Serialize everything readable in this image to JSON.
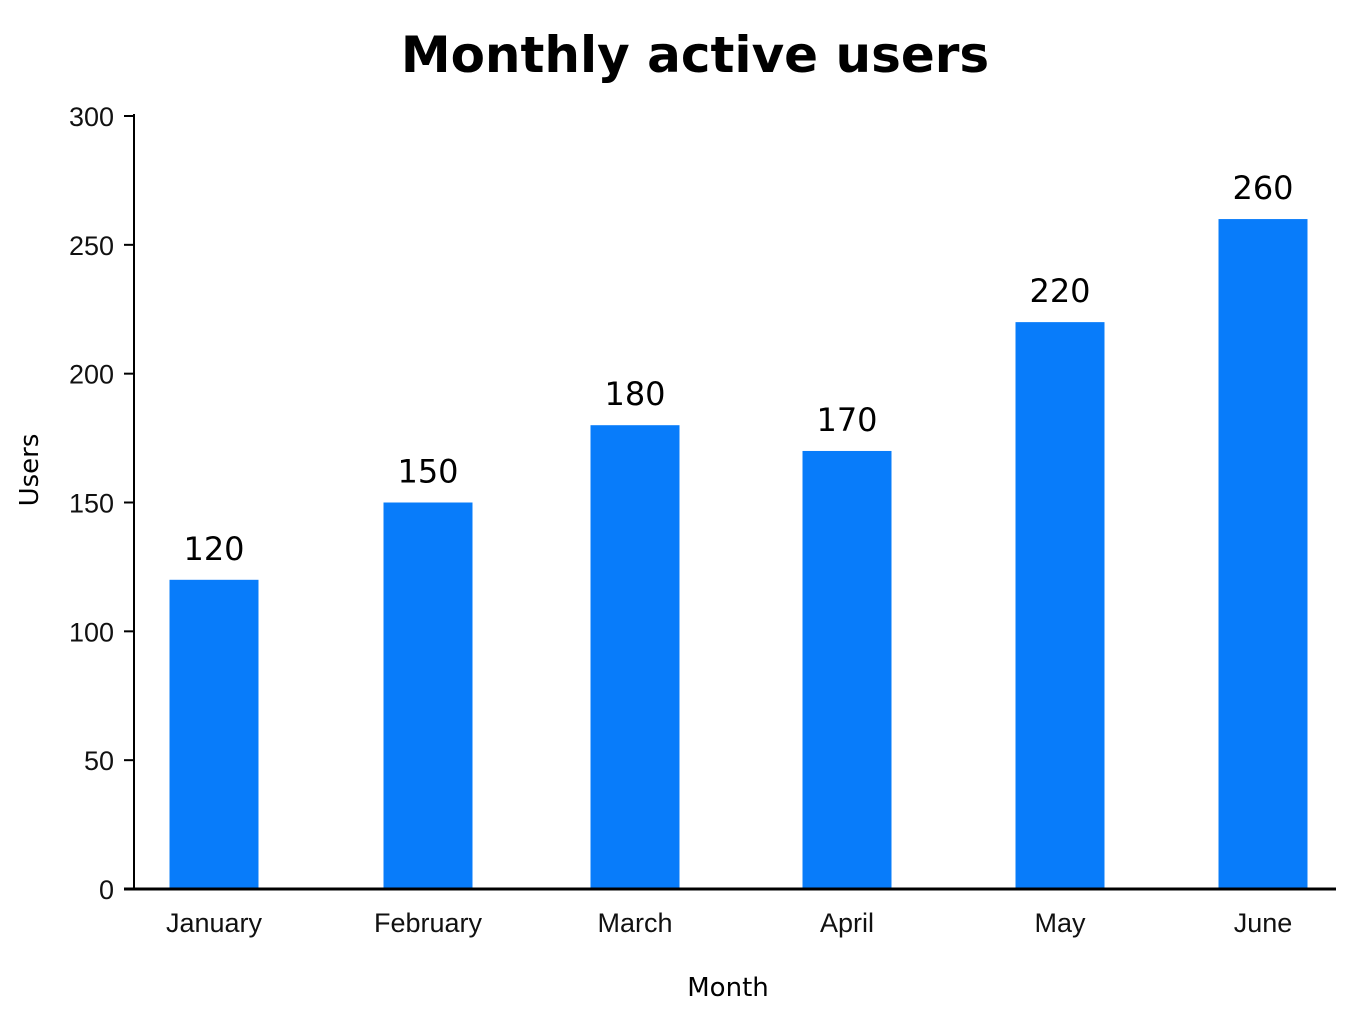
{
  "chart_data": {
    "type": "bar",
    "title": "Monthly active users",
    "xlabel": "Month",
    "ylabel": "Users",
    "categories": [
      "January",
      "February",
      "March",
      "April",
      "May",
      "June"
    ],
    "values": [
      120,
      150,
      180,
      170,
      220,
      260
    ],
    "data_labels": [
      "120",
      "150",
      "180",
      "170",
      "220",
      "260"
    ],
    "ylim": [
      0,
      300
    ],
    "yticks": [
      0,
      50,
      100,
      150,
      200,
      250,
      300
    ],
    "ytick_labels": [
      "0",
      "50",
      "100",
      "150",
      "200",
      "250",
      "300"
    ],
    "grid": false,
    "legend": "none",
    "bar_color": "#087CFA",
    "axis_color": "#000000"
  }
}
